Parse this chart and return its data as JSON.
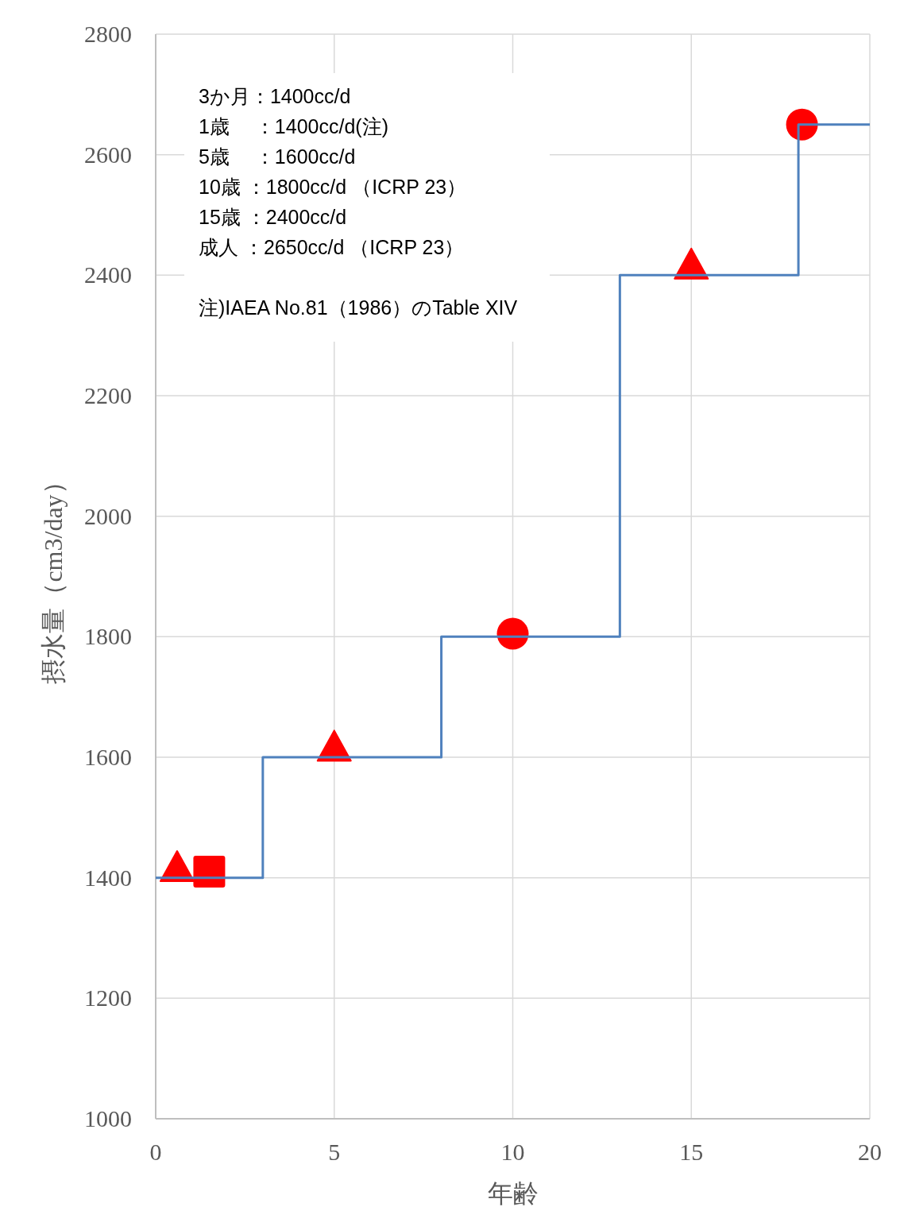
{
  "chart_data": {
    "type": "step",
    "xlabel": "年齢",
    "ylabel": "摂水量（cm3/day）",
    "xlim": [
      0,
      20
    ],
    "xticks": [
      0,
      5,
      10,
      15,
      20
    ],
    "ylim": [
      1000,
      2800
    ],
    "yticks": [
      1000,
      1200,
      1400,
      1600,
      1800,
      2000,
      2200,
      2400,
      2600,
      2800
    ],
    "grid": true,
    "series": [
      {
        "color": "#4f81bd",
        "x": [
          0,
          3,
          8,
          13,
          18,
          20
        ],
        "values": [
          1400,
          1600,
          1800,
          2400,
          2650,
          2650
        ],
        "marker": "none"
      },
      {
        "type": "scatter",
        "color": "#ff0000",
        "marker": "triangle",
        "x": [
          0.6,
          5,
          15
        ],
        "values": [
          1410,
          1610,
          2410
        ]
      },
      {
        "type": "scatter",
        "color": "#ff0000",
        "marker": "square",
        "x": [
          1.5
        ],
        "values": [
          1410
        ]
      },
      {
        "type": "scatter",
        "color": "#ff0000",
        "marker": "circle",
        "x": [
          10,
          18.1
        ],
        "values": [
          1805,
          2650
        ]
      }
    ],
    "annotations": [
      "3か月：1400cc/d",
      "1歳　 ：1400cc/d(注)",
      "5歳　 ：1600cc/d",
      "10歳 ：1800cc/d （ICRP 23）",
      "15歳 ：2400cc/d",
      "成人 ：2650cc/d （ICRP 23）",
      "注)IAEA No.81（1986）のTable XIV"
    ]
  }
}
